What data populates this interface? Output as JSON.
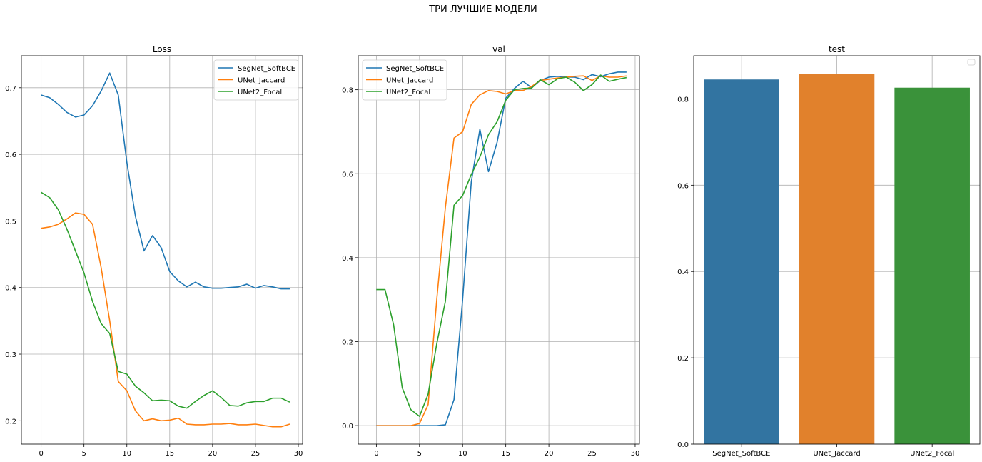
{
  "figure": {
    "suptitle": "ТРИ ЛУЧШИЕ МОДЕЛИ"
  },
  "colors": {
    "blue": "#1f77b4",
    "orange": "#ff7f0e",
    "green": "#2ca02c",
    "bar_blue": "#3274a1",
    "bar_orange": "#e1812c",
    "bar_green": "#3a923a",
    "grid": "#b0b0b0"
  },
  "chart_data": [
    {
      "type": "line",
      "title": "Loss",
      "xlabel": "",
      "ylabel": "",
      "xlim": [
        -2.3,
        30.5
      ],
      "ylim": [
        0.165,
        0.748
      ],
      "xticks": [
        0,
        5,
        10,
        15,
        20,
        25,
        30
      ],
      "yticks": [
        0.2,
        0.3,
        0.4,
        0.5,
        0.6,
        0.7
      ],
      "grid": true,
      "legend_position": "top-right",
      "x": [
        0,
        1,
        2,
        3,
        4,
        5,
        6,
        7,
        8,
        9,
        10,
        11,
        12,
        13,
        14,
        15,
        16,
        17,
        18,
        19,
        20,
        21,
        22,
        23,
        24,
        25,
        26,
        27,
        28,
        29
      ],
      "series": [
        {
          "name": "SegNet_SoftBCE",
          "color": "#1f77b4",
          "values": [
            0.689,
            0.685,
            0.675,
            0.663,
            0.656,
            0.659,
            0.673,
            0.695,
            0.722,
            0.689,
            0.588,
            0.507,
            0.455,
            0.478,
            0.46,
            0.424,
            0.41,
            0.401,
            0.408,
            0.401,
            0.399,
            0.399,
            0.4,
            0.401,
            0.405,
            0.399,
            0.403,
            0.401,
            0.398,
            0.398
          ]
        },
        {
          "name": "UNet_Jaccard",
          "color": "#ff7f0e",
          "values": [
            0.489,
            0.491,
            0.495,
            0.503,
            0.512,
            0.51,
            0.495,
            0.43,
            0.35,
            0.259,
            0.245,
            0.215,
            0.2,
            0.203,
            0.2,
            0.201,
            0.204,
            0.195,
            0.194,
            0.194,
            0.195,
            0.195,
            0.196,
            0.194,
            0.194,
            0.195,
            0.193,
            0.191,
            0.191,
            0.195
          ]
        },
        {
          "name": "UNet2_Focal",
          "color": "#2ca02c",
          "values": [
            0.543,
            0.535,
            0.517,
            0.488,
            0.455,
            0.422,
            0.379,
            0.346,
            0.331,
            0.274,
            0.27,
            0.252,
            0.242,
            0.23,
            0.231,
            0.23,
            0.222,
            0.219,
            0.229,
            0.238,
            0.245,
            0.235,
            0.223,
            0.222,
            0.227,
            0.229,
            0.229,
            0.234,
            0.234,
            0.228
          ]
        }
      ]
    },
    {
      "type": "line",
      "title": "val",
      "xlabel": "",
      "ylabel": "",
      "xlim": [
        -2.1,
        30.5
      ],
      "ylim": [
        -0.044,
        0.881
      ],
      "xticks": [
        0,
        5,
        10,
        15,
        20,
        25,
        30
      ],
      "yticks": [
        0.0,
        0.2,
        0.4,
        0.6,
        0.8
      ],
      "grid": true,
      "legend_position": "top-left",
      "x": [
        0,
        1,
        2,
        3,
        4,
        5,
        6,
        7,
        8,
        9,
        10,
        11,
        12,
        13,
        14,
        15,
        16,
        17,
        18,
        19,
        20,
        21,
        22,
        23,
        24,
        25,
        26,
        27,
        28,
        29
      ],
      "series": [
        {
          "name": "SegNet_SoftBCE",
          "color": "#1f77b4",
          "values": [
            0.0,
            0.0,
            0.0,
            0.0,
            0.0,
            0.0,
            0.0,
            0.0,
            0.002,
            0.062,
            0.3,
            0.58,
            0.706,
            0.605,
            0.675,
            0.78,
            0.803,
            0.82,
            0.805,
            0.822,
            0.83,
            0.832,
            0.83,
            0.83,
            0.824,
            0.836,
            0.831,
            0.838,
            0.842,
            0.842
          ]
        },
        {
          "name": "UNet_Jaccard",
          "color": "#ff7f0e",
          "values": [
            0.0,
            0.0,
            0.0,
            0.0,
            0.0,
            0.005,
            0.05,
            0.3,
            0.52,
            0.685,
            0.7,
            0.765,
            0.788,
            0.798,
            0.796,
            0.79,
            0.798,
            0.798,
            0.808,
            0.822,
            0.825,
            0.828,
            0.83,
            0.832,
            0.833,
            0.822,
            0.833,
            0.83,
            0.83,
            0.833
          ]
        },
        {
          "name": "UNet2_Focal",
          "color": "#2ca02c",
          "values": [
            0.324,
            0.324,
            0.24,
            0.09,
            0.038,
            0.022,
            0.075,
            0.195,
            0.296,
            0.525,
            0.548,
            0.598,
            0.64,
            0.693,
            0.724,
            0.775,
            0.8,
            0.803,
            0.804,
            0.824,
            0.812,
            0.826,
            0.83,
            0.818,
            0.798,
            0.812,
            0.835,
            0.82,
            0.825,
            0.829
          ]
        }
      ]
    },
    {
      "type": "bar",
      "title": "test",
      "xlabel": "",
      "ylabel": "",
      "ylim": [
        0,
        0.9
      ],
      "yticks": [
        0.0,
        0.2,
        0.4,
        0.6,
        0.8
      ],
      "grid": true,
      "legend_position": "top-right",
      "categories": [
        "SegNet_SoftBCE",
        "UNet_Jaccard",
        "UNet2_Focal"
      ],
      "values": [
        0.845,
        0.858,
        0.826
      ],
      "bar_colors": [
        "#3274a1",
        "#e1812c",
        "#3a923a"
      ]
    }
  ]
}
